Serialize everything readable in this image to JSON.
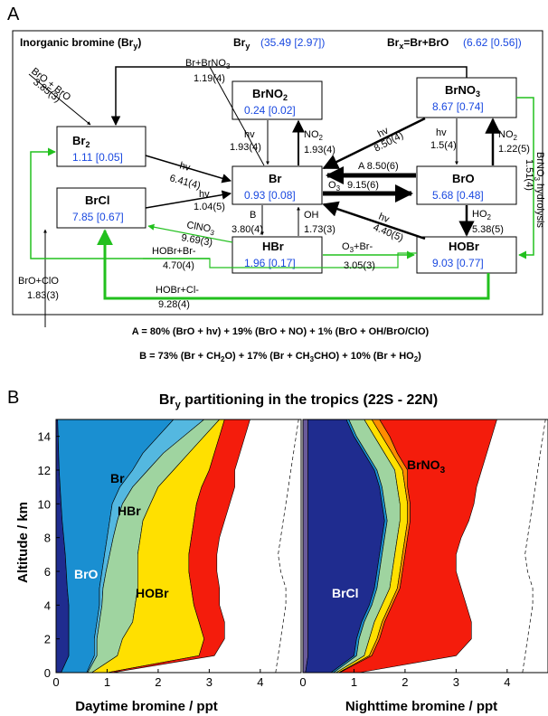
{
  "panel_a": {
    "letter": "A",
    "header": {
      "title": "Inorganic bromine (Br",
      "title_sub": "y",
      "title_end": ")",
      "bry_label": "Br",
      "bry_sub": "y",
      "bry_value": "(35.49 [2.97])",
      "brx_label": "Br",
      "brx_sub": "x",
      "brx_eq": "=Br+BrO",
      "brx_value": "(6.62 [0.56])"
    },
    "boxes": {
      "br2": {
        "name": "Br",
        "sub": "2",
        "value": "1.11 [0.05]"
      },
      "brcl": {
        "name": "BrCl",
        "value": "7.85 [0.67]"
      },
      "brno2": {
        "name": "BrNO",
        "sub": "2",
        "value": "0.24 [0.02]"
      },
      "br": {
        "name": "Br",
        "value": "0.93 [0.08]"
      },
      "brno3": {
        "name": "BrNO",
        "sub": "3",
        "value": "8.67 [0.74]"
      },
      "bro": {
        "name": "BrO",
        "value": "5.68 [0.48]"
      },
      "hbr": {
        "name": "HBr",
        "value": "1.96 [0.17]"
      },
      "hobr": {
        "name": "HOBr",
        "value": "9.03 [0.77]"
      }
    },
    "reactions": {
      "bro_bro": "BrO + BrO",
      "bro_bro_rate": "3.85(3)",
      "br_brno3": "Br+BrNO",
      "br_brno3_sub": "3",
      "br_brno3_rate": "1.19(4)",
      "br2_hv": "hv",
      "br2_hv_rate": "6.41(4)",
      "brno2_hv": "hv",
      "brno2_hv_rate": "1.93(4)",
      "br_no2": "NO",
      "br_no2_sub": "2",
      "br_no2_rate": "1.93(4)",
      "brno3_hv": "hv",
      "brno3_hv_rate": "8.50(4)",
      "bro_hv_to_brno3": "hv",
      "bro_hv_to_brno3_rate": "1.5(4)",
      "bro_no2": "NO",
      "bro_no2_sub": "2",
      "bro_no2_rate": "1.22(5)",
      "brno3_hydrolysis": "BrNO",
      "brno3_hydrolysis_sub": "3",
      "brno3_hydrolysis_end": " hydrolysis",
      "brno3_hydrolysis_rate": "1.51(4)",
      "a_rate": "A 8.50(6)",
      "o3": "O",
      "o3_sub": "3",
      "o3_rate": "9.15(6)",
      "brcl_hv": "hv",
      "brcl_hv_rate": "1.04(5)",
      "b_label": "B",
      "b_rate": "3.80(4)",
      "oh_label": "OH",
      "oh_rate": "1.73(3)",
      "hobr_hv": "hv",
      "hobr_hv_rate": "4.40(5)",
      "bro_ho2": "HO",
      "bro_ho2_sub": "2",
      "bro_ho2_rate": "5.38(5)",
      "clno3": "ClNO",
      "clno3_sub": "3",
      "clno3_rate": "9.69(3)",
      "hobr_br": "HOBr+Br-",
      "hobr_br_rate": "4.70(4)",
      "o3_br": "O",
      "o3_br_sub": "3",
      "o3_br_end": "+Br-",
      "o3_br_rate": "3.05(3)",
      "bro_clo": "BrO+ClO",
      "bro_clo_rate": "1.83(3)",
      "hobr_cl": "HOBr+Cl-",
      "hobr_cl_rate": "9.28(4)"
    },
    "footnote_a": "A = 80% (BrO + hv) + 19% (BrO + NO) + 1% (BrO + OH/BrO/ClO)",
    "footnote_b_1": "B = 73% (Br + CH",
    "footnote_b_2": "2",
    "footnote_b_3": "O) + 17% (Br + CH",
    "footnote_b_4": "3",
    "footnote_b_5": "CHO) + 10% (Br + HO",
    "footnote_b_6": "2",
    "footnote_b_7": ")",
    "colors": {
      "value_blue": "#1a49e0",
      "green_arrow": "#22c01e"
    }
  },
  "panel_b": {
    "letter": "B",
    "title_1": "Br",
    "title_sub": "y",
    "title_2": " partitioning in the tropics (22S - 22N)",
    "ylabel": "Altitude / km",
    "xlabel_day": "Daytime bromine / ppt",
    "xlabel_night": "Nighttime bromine / ppt",
    "day_labels": {
      "br": "Br",
      "hbr": "HBr",
      "bro": "BrO",
      "hobr": "HOBr"
    },
    "night_labels": {
      "brcl": "BrCl",
      "brno3": "BrNO",
      "brno3_sub": "3"
    },
    "yticks": [
      "0",
      "2",
      "4",
      "6",
      "8",
      "10",
      "12",
      "14"
    ],
    "xticks_day": [
      "0",
      "1",
      "2",
      "3",
      "4"
    ],
    "xticks_night": [
      "0",
      "1",
      "2",
      "3",
      "4"
    ]
  },
  "chart_data": [
    {
      "type": "area",
      "orientation": "horizontal-stacked",
      "xlabel": "Daytime bromine / ppt",
      "ylabel": "Altitude / km",
      "xlim": [
        0,
        4.8
      ],
      "ylim": [
        0,
        15
      ],
      "altitude": [
        0,
        1,
        2,
        3,
        4,
        5,
        6,
        7,
        8,
        9,
        10,
        11,
        12,
        13,
        14,
        15
      ],
      "cumulative_boundaries": [
        {
          "name": "BrCl",
          "color": "#1f2c8f",
          "values": [
            0.1,
            0.25,
            0.25,
            0.25,
            0.25,
            0.22,
            0.2,
            0.18,
            0.15,
            0.12,
            0.1,
            0.08,
            0.06,
            0.05,
            0.04,
            0.03
          ]
        },
        {
          "name": "BrO",
          "color": "#1a8fd1",
          "values": [
            0.6,
            0.75,
            0.75,
            0.8,
            0.85,
            0.85,
            0.9,
            0.95,
            1.0,
            1.05,
            1.1,
            1.25,
            1.5,
            1.7,
            2.0,
            2.3
          ]
        },
        {
          "name": "Br",
          "color": "#54b8e0",
          "values": [
            0.62,
            0.8,
            0.8,
            0.85,
            0.9,
            0.92,
            0.98,
            1.05,
            1.12,
            1.2,
            1.3,
            1.5,
            1.8,
            2.1,
            2.5,
            2.9
          ]
        },
        {
          "name": "HBr",
          "color": "#9fd4a0",
          "values": [
            0.7,
            1.2,
            1.3,
            1.5,
            1.55,
            1.6,
            1.6,
            1.6,
            1.65,
            1.7,
            1.85,
            2.0,
            2.3,
            2.6,
            2.9,
            3.2
          ]
        },
        {
          "name": "HOBr",
          "color": "#ffe000",
          "values": [
            1.0,
            2.8,
            2.9,
            2.8,
            2.7,
            2.65,
            2.6,
            2.6,
            2.65,
            2.7,
            2.75,
            2.85,
            3.0,
            3.1,
            3.2,
            3.3
          ]
        },
        {
          "name": "BrNO3",
          "color": "#f41c0c",
          "values": [
            1.1,
            3.1,
            3.3,
            3.3,
            3.2,
            3.2,
            3.15,
            3.15,
            3.2,
            3.3,
            3.4,
            3.5,
            3.5,
            3.6,
            3.7,
            3.8
          ]
        }
      ],
      "total_dashed": [
        4.3,
        4.35,
        4.4,
        4.45,
        4.5,
        4.5,
        4.4,
        4.35,
        4.4,
        4.45,
        4.5,
        4.55,
        4.6,
        4.65,
        4.7,
        4.75
      ]
    },
    {
      "type": "area",
      "orientation": "horizontal-stacked",
      "xlabel": "Nighttime bromine / ppt",
      "ylabel": "Altitude / km",
      "xlim": [
        0,
        4.8
      ],
      "ylim": [
        0,
        15
      ],
      "altitude": [
        0,
        1,
        2,
        3,
        4,
        5,
        6,
        7,
        8,
        9,
        10,
        11,
        12,
        13,
        14,
        15
      ],
      "cumulative_boundaries": [
        {
          "name": "Br2",
          "color": "#6a5a9a",
          "values": [
            0.05,
            0.1,
            0.1,
            0.1,
            0.1,
            0.1,
            0.1,
            0.1,
            0.1,
            0.1,
            0.1,
            0.1,
            0.1,
            0.1,
            0.1,
            0.1
          ]
        },
        {
          "name": "BrCl",
          "color": "#1f2c8f",
          "values": [
            0.55,
            1.0,
            1.05,
            1.15,
            1.3,
            1.4,
            1.45,
            1.5,
            1.55,
            1.6,
            1.55,
            1.5,
            1.4,
            1.2,
            1.0,
            0.85
          ]
        },
        {
          "name": "BrO",
          "color": "#1a8fd1",
          "values": [
            0.6,
            1.05,
            1.1,
            1.2,
            1.35,
            1.45,
            1.5,
            1.55,
            1.6,
            1.65,
            1.6,
            1.55,
            1.45,
            1.25,
            1.05,
            0.9
          ]
        },
        {
          "name": "HBr",
          "color": "#9fd4a0",
          "values": [
            0.65,
            1.2,
            1.3,
            1.4,
            1.55,
            1.7,
            1.75,
            1.8,
            1.85,
            1.9,
            1.9,
            1.85,
            1.8,
            1.6,
            1.4,
            1.2
          ]
        },
        {
          "name": "HOBr",
          "color": "#ffe000",
          "values": [
            0.7,
            1.3,
            1.45,
            1.55,
            1.7,
            1.85,
            1.9,
            1.95,
            2.0,
            2.05,
            2.05,
            2.0,
            1.95,
            1.75,
            1.55,
            1.35
          ]
        },
        {
          "name": "BrNO2",
          "color": "#ff8c00",
          "values": [
            0.72,
            1.35,
            1.5,
            1.6,
            1.75,
            1.9,
            1.95,
            2.0,
            2.05,
            2.1,
            2.1,
            2.05,
            2.05,
            1.85,
            1.7,
            1.5
          ]
        },
        {
          "name": "BrNO3",
          "color": "#f41c0c",
          "values": [
            1.1,
            3.0,
            3.3,
            3.3,
            3.2,
            3.1,
            3.0,
            3.0,
            3.1,
            3.25,
            3.35,
            3.4,
            3.5,
            3.6,
            3.7,
            3.8
          ]
        }
      ],
      "total_dashed": [
        4.3,
        4.35,
        4.4,
        4.45,
        4.5,
        4.5,
        4.4,
        4.35,
        4.4,
        4.45,
        4.5,
        4.55,
        4.6,
        4.65,
        4.7,
        4.75
      ]
    }
  ]
}
